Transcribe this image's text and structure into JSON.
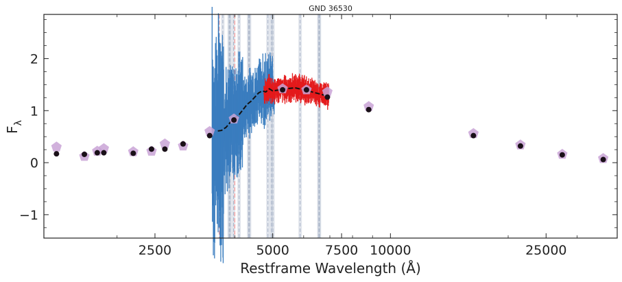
{
  "chart_data": {
    "type": "scatter",
    "title": "GND 36530",
    "xlabel": "Restframe Wavelength (Å)",
    "ylabel": "F",
    "ylabel_subscript": "λ",
    "x_scale": "log",
    "xlim": [
      1300,
      38000
    ],
    "ylim": [
      -1.45,
      2.85
    ],
    "x_ticks": [
      2500,
      5000,
      7500,
      10000,
      25000
    ],
    "x_tick_labels": [
      "2500",
      "5000",
      "7500",
      "10000",
      "25000"
    ],
    "y_ticks": [
      -1,
      0,
      1,
      2
    ],
    "y_tick_labels": [
      "−1",
      "0",
      "1",
      "2"
    ],
    "grid": false,
    "colors": {
      "blue_spectrum": "#3a7dbf",
      "red_spectrum": "#e41a1c",
      "model_line": "#111111",
      "photometry_points": "#1a1018",
      "model_photometry": "#c9a3d6",
      "emission_lines": "#a8b4c8",
      "break_lines": "#f4a3a3"
    },
    "spectrum_blue": {
      "x_range": [
        3500,
        5050
      ],
      "y_level": 0.9
    },
    "spectrum_red": {
      "x_range": [
        4750,
        6950
      ],
      "y_level": 1.35
    },
    "model_spectrum": {
      "x": [
        3620,
        3700,
        3800,
        3900,
        4000,
        4100,
        4200,
        4300,
        4400,
        4500,
        4600,
        4700,
        4800,
        4900,
        5000,
        5200,
        5400,
        5700,
        6000,
        6300,
        6600,
        6900
      ],
      "y": [
        0.61,
        0.62,
        0.68,
        0.78,
        0.86,
        0.92,
        1.02,
        1.12,
        1.18,
        1.26,
        1.34,
        1.38,
        1.36,
        1.42,
        1.38,
        1.4,
        1.42,
        1.44,
        1.4,
        1.36,
        1.32,
        1.28
      ]
    },
    "series": [
      {
        "x": [
          1400,
          1650,
          1780,
          1850,
          2200,
          2450,
          2650,
          2950,
          3450,
          3980,
          5300,
          6100,
          6900,
          8800,
          16300,
          21500,
          27500,
          35000
        ],
        "y": [
          0.17,
          0.16,
          0.19,
          0.19,
          0.18,
          0.26,
          0.26,
          0.36,
          0.52,
          0.82,
          1.4,
          1.4,
          1.26,
          1.02,
          0.52,
          0.32,
          0.15,
          0.06
        ]
      },
      {
        "x": [
          1400,
          1650,
          1780,
          1850,
          2200,
          2450,
          2650,
          2950,
          3450,
          3980,
          5300,
          6100,
          6900,
          8800,
          16300,
          21500,
          27500,
          35000
        ],
        "y": [
          0.3,
          0.12,
          0.22,
          0.27,
          0.21,
          0.22,
          0.36,
          0.32,
          0.6,
          0.84,
          1.42,
          1.4,
          1.36,
          1.08,
          0.56,
          0.34,
          0.16,
          0.08
        ]
      }
    ],
    "emission_lines_x": [
      3727,
      3869,
      3889,
      3970,
      4102,
      4341,
      4363,
      4861,
      4959,
      5007,
      5876,
      6563,
      6583
    ],
    "break_lines_x": [
      3650,
      4000
    ]
  }
}
